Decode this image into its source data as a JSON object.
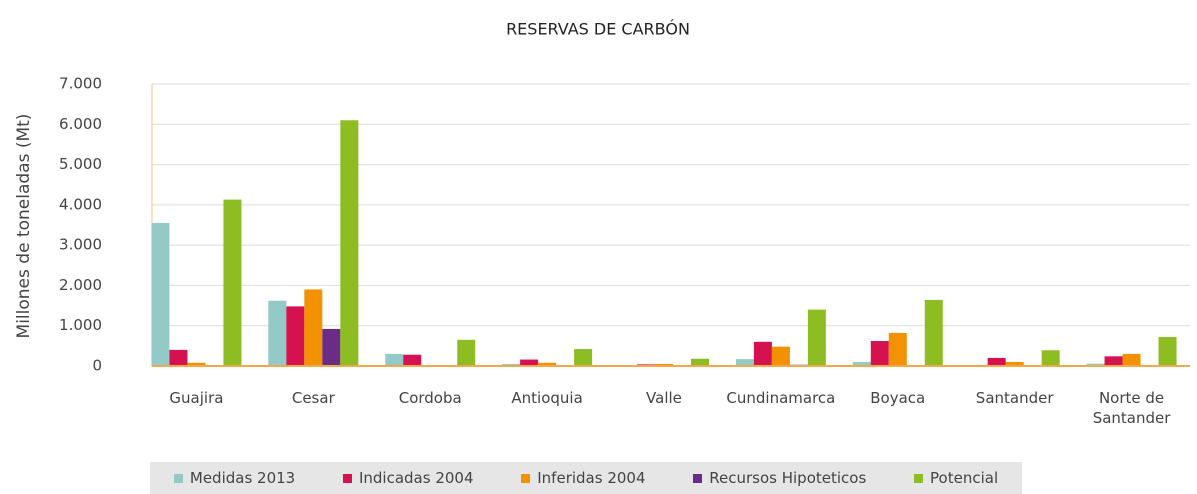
{
  "chart_data": {
    "type": "bar",
    "title": "RESERVAS DE CARBÓN",
    "y_label": "Millones de toneladas  (Mt)",
    "categories": [
      "Guajira",
      "Cesar",
      "Cordoba",
      "Antioquia",
      "Valle",
      "Cundinamarca",
      "Boyaca",
      "Santander",
      "Norte de Santander"
    ],
    "series": [
      {
        "name": "Medidas 2013",
        "color": "#93c9c6",
        "values": [
          3550,
          1620,
          300,
          50,
          10,
          170,
          100,
          20,
          60
        ]
      },
      {
        "name": "Indicadas 2004",
        "color": "#d6114f",
        "values": [
          400,
          1480,
          280,
          160,
          40,
          600,
          620,
          200,
          240
        ]
      },
      {
        "name": "Inferidas 2004",
        "color": "#f39200",
        "values": [
          80,
          1900,
          0,
          80,
          50,
          480,
          820,
          100,
          300
        ]
      },
      {
        "name": "Recursos Hipoteticos",
        "color": "#6a2c86",
        "values": [
          0,
          920,
          0,
          0,
          0,
          30,
          0,
          0,
          0
        ]
      },
      {
        "name": "Potencial",
        "color": "#8dbd22",
        "values": [
          4130,
          6100,
          650,
          420,
          180,
          1400,
          1640,
          390,
          720
        ]
      }
    ],
    "ylim": [
      0,
      7000
    ],
    "yticks": [
      0,
      {
        "value": 1000,
        "label": "1.000"
      },
      {
        "value": 2000,
        "label": "2.000"
      },
      {
        "value": 3000,
        "label": "3.000"
      },
      {
        "value": 4000,
        "label": "4.000"
      },
      {
        "value": 5000,
        "label": "5.000"
      },
      {
        "value": 6000,
        "label": "6.000"
      },
      {
        "value": 7000,
        "label": "7.000"
      }
    ],
    "grid": true
  }
}
